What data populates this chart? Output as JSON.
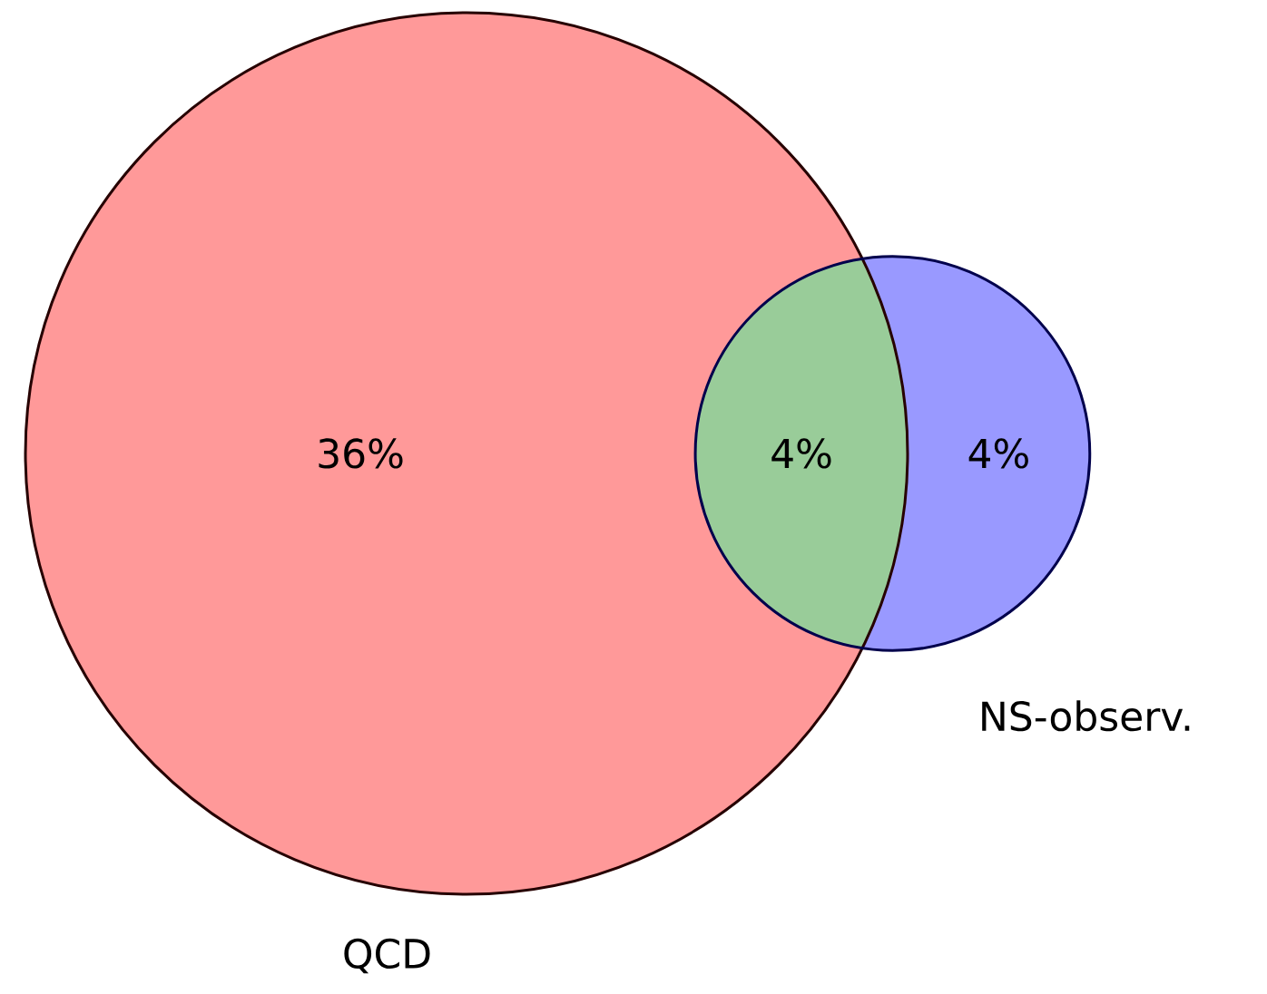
{
  "chart_data": {
    "type": "other",
    "categories": [
      null,
      null,
      null
    ],
    "values": [
      36,
      4,
      4
    ],
    "value_labels": [
      "36%",
      "4%",
      "4%"
    ],
    "colors": [
      "#ff9999",
      "#99cc99",
      "#9999ff"
    ],
    "annotations": [
      "QCD",
      "NS-observ."
    ]
  }
}
